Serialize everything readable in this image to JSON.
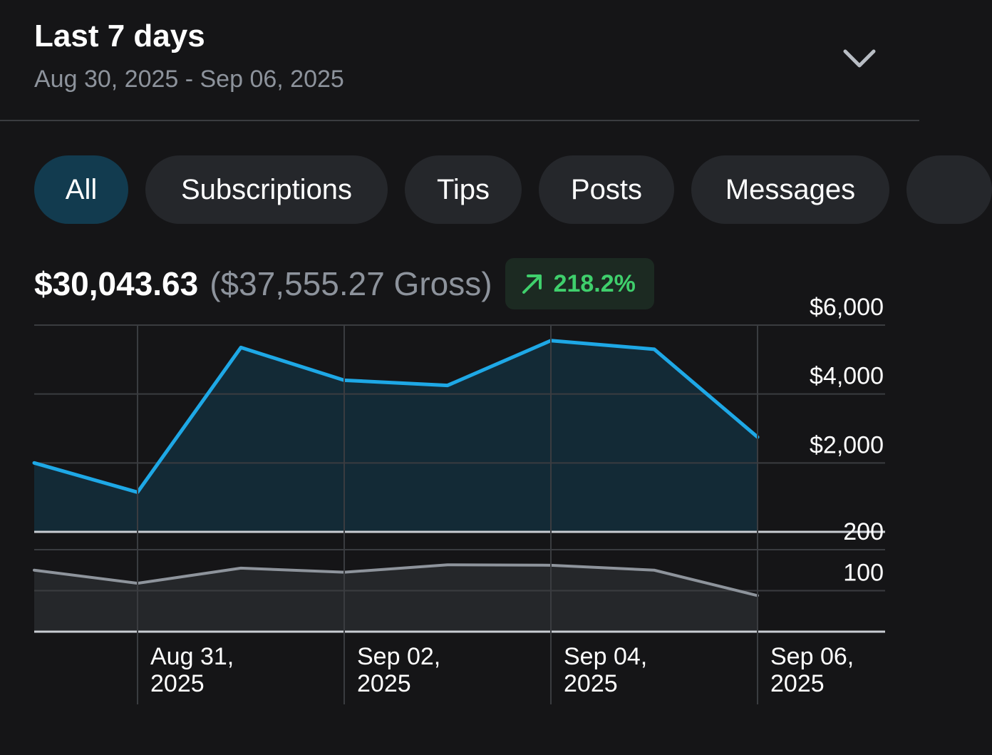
{
  "header": {
    "title": "Last 7 days",
    "date_range": "Aug 30, 2025 - Sep 06, 2025"
  },
  "tabs": [
    {
      "label": "All",
      "active": true
    },
    {
      "label": "Subscriptions",
      "active": false
    },
    {
      "label": "Tips",
      "active": false
    },
    {
      "label": "Posts",
      "active": false
    },
    {
      "label": "Messages",
      "active": false
    }
  ],
  "summary": {
    "net": "$30,043.63",
    "gross": "($37,555.27 Gross)",
    "change": "218.2%",
    "change_color": "#3fcf6c"
  },
  "chart_data": [
    {
      "type": "area",
      "name": "earnings",
      "x": [
        "Aug 30",
        "Aug 31",
        "Sep 01",
        "Sep 02",
        "Sep 03",
        "Sep 04",
        "Sep 05",
        "Sep 06"
      ],
      "values": [
        2000,
        1150,
        5350,
        4400,
        4250,
        5550,
        5300,
        2750
      ],
      "ylim": [
        0,
        6000
      ],
      "yticks": [
        {
          "value": 2000,
          "label": "$2,000"
        },
        {
          "value": 4000,
          "label": "$4,000"
        },
        {
          "value": 6000,
          "label": "$6,000"
        }
      ],
      "color": "#1ea8e6"
    },
    {
      "type": "area",
      "name": "count",
      "x": [
        "Aug 30",
        "Aug 31",
        "Sep 01",
        "Sep 02",
        "Sep 03",
        "Sep 04",
        "Sep 05",
        "Sep 06"
      ],
      "values": [
        150,
        118,
        155,
        145,
        163,
        162,
        150,
        88
      ],
      "ylim": [
        0,
        200
      ],
      "yticks": [
        {
          "value": 100,
          "label": "100"
        },
        {
          "value": 200,
          "label": "200"
        }
      ],
      "color": "#8e949c"
    }
  ],
  "x_axis": {
    "labels": [
      {
        "index": 1,
        "line1": "Aug 31,",
        "line2": "2025"
      },
      {
        "index": 3,
        "line1": "Sep 02,",
        "line2": "2025"
      },
      {
        "index": 5,
        "line1": "Sep 04,",
        "line2": "2025"
      },
      {
        "index": 7,
        "line1": "Sep 06,",
        "line2": "2025"
      }
    ]
  }
}
